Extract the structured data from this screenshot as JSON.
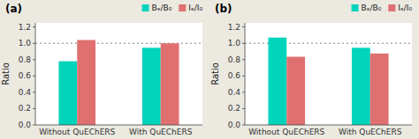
{
  "chart_data": [
    {
      "type": "bar",
      "title": "(a)",
      "ylabel": "Ratio",
      "categories": [
        "Without QuEChERS",
        "With QuEChERS"
      ],
      "series": [
        {
          "name": "Bₑ/B₀",
          "color": "#00D4BB",
          "values": [
            0.78,
            0.945
          ]
        },
        {
          "name": "Iₑ/I₀",
          "color": "#E07070",
          "values": [
            1.04,
            1.0
          ]
        }
      ],
      "hline": 1.0,
      "ylim": [
        0.0,
        1.25
      ],
      "yticks": [
        {
          "value": 0.0,
          "label": "0.0"
        },
        0.2,
        0.4,
        0.6,
        0.8,
        {
          "value": 1.0,
          "label": "1.0"
        },
        1.2
      ],
      "grid": false,
      "legend": "upper right"
    },
    {
      "type": "bar",
      "title": "(b)",
      "ylabel": "Ratio",
      "categories": [
        "Without QuEChERS",
        "With QuEChERS"
      ],
      "series": [
        {
          "name": "Bₑ/B₀",
          "color": "#00D4BB",
          "values": [
            1.07,
            0.945
          ]
        },
        {
          "name": "Iₑ/I₀",
          "color": "#E07070",
          "values": [
            0.835,
            0.875
          ]
        }
      ],
      "hline": 1.0,
      "ylim": [
        0.0,
        1.25
      ],
      "yticks": [
        {
          "value": 0.0,
          "label": "0.0"
        },
        0.2,
        0.4,
        0.6,
        0.8,
        {
          "value": 1.0,
          "label": "1.0"
        },
        1.2
      ],
      "grid": false,
      "legend": "upper right"
    }
  ]
}
